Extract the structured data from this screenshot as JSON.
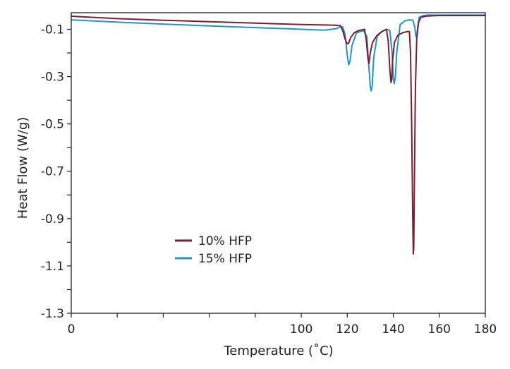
{
  "chart_data": {
    "type": "line",
    "title": "",
    "xlabel": "Temperature (˚C)",
    "ylabel": "Heat Flow (W/g)",
    "xlim": [
      0,
      180
    ],
    "ylim": [
      -1.3,
      -0.03
    ],
    "x_ticks": [
      0,
      20,
      40,
      60,
      80,
      100,
      120,
      140,
      160,
      180
    ],
    "x_tick_labels": [
      "0",
      "",
      "",
      "",
      "",
      "100",
      "120",
      "140",
      "160",
      "180"
    ],
    "y_ticks": [
      -0.1,
      -0.2,
      -0.3,
      -0.4,
      -0.5,
      -0.6,
      -0.7,
      -0.8,
      -0.9,
      -1.0,
      -1.1,
      -1.2,
      -1.3
    ],
    "y_tick_labels": [
      "-0.1",
      "",
      "-0.3",
      "",
      "-0.5",
      "",
      "-0.7",
      "",
      "-0.9",
      "",
      "-1.1",
      "",
      "-1.3"
    ],
    "grid": false,
    "legend_position": "lower-left",
    "series": [
      {
        "name": "10% HFP",
        "color": "#7a1f2e",
        "x": [
          0,
          20,
          40,
          60,
          80,
          100,
          110,
          115,
          117,
          118,
          119,
          119.8,
          120.5,
          121.5,
          123,
          125,
          127.5,
          128.3,
          129,
          129.4,
          130,
          131,
          133,
          135,
          137,
          137.8,
          138.5,
          139,
          139.3,
          139.7,
          140.5,
          142,
          144,
          146,
          147,
          147.5,
          148,
          148.4,
          148.7,
          148.9,
          149.2,
          149.6,
          150.2,
          151,
          152,
          154,
          157,
          160,
          170,
          180
        ],
        "y": [
          -0.045,
          -0.055,
          -0.062,
          -0.068,
          -0.074,
          -0.08,
          -0.082,
          -0.083,
          -0.085,
          -0.105,
          -0.14,
          -0.16,
          -0.16,
          -0.135,
          -0.115,
          -0.105,
          -0.1,
          -0.15,
          -0.225,
          -0.245,
          -0.2,
          -0.155,
          -0.125,
          -0.11,
          -0.1,
          -0.15,
          -0.27,
          -0.325,
          -0.31,
          -0.23,
          -0.155,
          -0.125,
          -0.115,
          -0.11,
          -0.11,
          -0.2,
          -0.5,
          -0.85,
          -1.05,
          -1.02,
          -0.7,
          -0.35,
          -0.14,
          -0.07,
          -0.05,
          -0.045,
          -0.043,
          -0.042,
          -0.042,
          -0.042
        ]
      },
      {
        "name": "15% HFP",
        "color": "#1f95cf",
        "x": [
          0,
          20,
          40,
          60,
          80,
          100,
          110,
          115,
          117,
          118,
          119,
          120,
          120.6,
          121.2,
          122,
          124,
          127,
          128.5,
          129.3,
          130,
          130.4,
          130.8,
          131.5,
          133,
          135,
          137,
          138.5,
          139.5,
          140,
          140.4,
          140.9,
          141.5,
          143,
          145,
          147,
          148.5,
          149.3,
          149.8,
          150.1,
          150.5,
          151.2,
          153,
          155,
          160,
          170,
          180
        ],
        "y": [
          -0.06,
          -0.07,
          -0.078,
          -0.086,
          -0.093,
          -0.1,
          -0.104,
          -0.098,
          -0.09,
          -0.09,
          -0.12,
          -0.21,
          -0.25,
          -0.235,
          -0.17,
          -0.115,
          -0.105,
          -0.13,
          -0.25,
          -0.34,
          -0.36,
          -0.34,
          -0.22,
          -0.13,
          -0.11,
          -0.1,
          -0.105,
          -0.2,
          -0.31,
          -0.33,
          -0.3,
          -0.2,
          -0.08,
          -0.065,
          -0.06,
          -0.062,
          -0.09,
          -0.13,
          -0.13,
          -0.1,
          -0.05,
          -0.042,
          -0.04,
          -0.04,
          -0.04,
          -0.04
        ]
      }
    ]
  }
}
